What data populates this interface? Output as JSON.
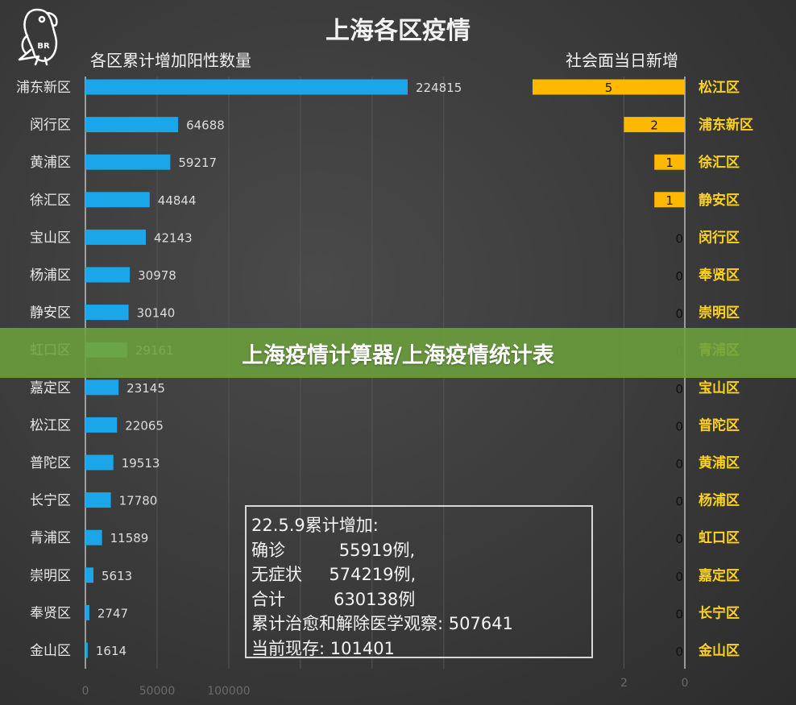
{
  "logo_text": "BR",
  "banner_text": "上海疫情计算器/上海疫情统计表",
  "chart_data": {
    "type": "bar",
    "title": "上海各区疫情",
    "left": {
      "subtitle": "各区累计增加阳性数量",
      "orientation": "horizontal",
      "categories": [
        "浦东新区",
        "闵行区",
        "黄浦区",
        "徐汇区",
        "宝山区",
        "杨浦区",
        "静安区",
        "虹口区",
        "嘉定区",
        "松江区",
        "普陀区",
        "长宁区",
        "青浦区",
        "崇明区",
        "奉贤区",
        "金山区"
      ],
      "values": [
        224815,
        64688,
        59217,
        44844,
        42143,
        30978,
        30140,
        29161,
        23145,
        22065,
        19513,
        17780,
        11589,
        5613,
        2747,
        1614
      ],
      "xlim": [
        0,
        250000
      ],
      "ticks": [
        "0",
        "50000",
        "100000"
      ],
      "color": "#1aa6e8",
      "highlight_index": 7,
      "highlight_color": "#5cc08a"
    },
    "right": {
      "subtitle": "社会面当日新增",
      "orientation": "horizontal-reversed",
      "categories": [
        "松江区",
        "浦东新区",
        "徐汇区",
        "静安区",
        "闵行区",
        "奉贤区",
        "崇明区",
        "青浦区",
        "宝山区",
        "普陀区",
        "黄浦区",
        "杨浦区",
        "虹口区",
        "嘉定区",
        "长宁区",
        "金山区"
      ],
      "values": [
        5,
        2,
        1,
        1,
        0,
        0,
        0,
        0,
        0,
        0,
        0,
        0,
        0,
        0,
        0,
        0
      ],
      "xlim": [
        0,
        5
      ],
      "ticks": [
        "2",
        "0"
      ],
      "color": "#ffb800"
    },
    "grid": true
  },
  "stats": {
    "lines": [
      "22.5.9累计增加:",
      "确诊          55919例,",
      "无症状     574219例,",
      "合计         630138例",
      "累计治愈和解除医学观察: 507641",
      "当前现存: 101401"
    ]
  }
}
